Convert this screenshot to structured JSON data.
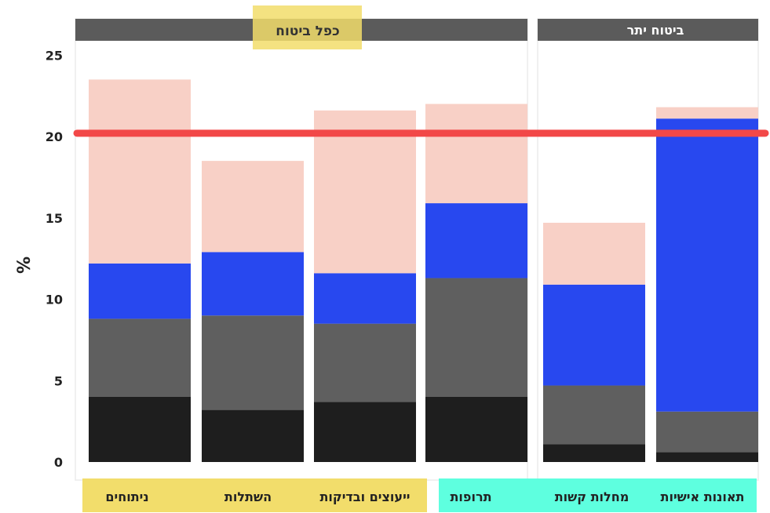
{
  "chart_data": {
    "type": "bar",
    "stacked": true,
    "ylabel": "%",
    "ylim": [
      0,
      25
    ],
    "yticks": [
      0,
      5,
      10,
      15,
      20,
      25
    ],
    "grid": false,
    "categories": [
      "ניתוחים",
      "השתלות",
      "ייעוצים ובדיקות",
      "תרופות",
      "מחלות קשות",
      "תאונות אישיות"
    ],
    "series": [
      {
        "color": "#1e1e1e",
        "values": [
          4.0,
          3.2,
          3.7,
          4.0,
          1.1,
          0.6
        ]
      },
      {
        "color": "#5f5f5f",
        "values": [
          4.8,
          5.8,
          4.8,
          7.3,
          3.6,
          2.5
        ]
      },
      {
        "color": "#2848ef",
        "values": [
          3.4,
          3.9,
          3.1,
          4.6,
          6.2,
          18.0
        ]
      },
      {
        "color": "#f8d0c6",
        "values": [
          11.3,
          5.6,
          10.0,
          6.1,
          3.8,
          0.7
        ]
      }
    ],
    "reference_line": {
      "value": 20.2,
      "color": "#f24848"
    },
    "groups": [
      {
        "label": "כפל ביטוח",
        "categories": [
          0,
          1,
          2,
          3
        ]
      },
      {
        "label": "ביטוח יתר",
        "categories": [
          4,
          5
        ]
      }
    ],
    "category_highlights": [
      {
        "categories": [
          0,
          1,
          2
        ],
        "color": "#f2dd6b"
      },
      {
        "categories": [
          3,
          4,
          5
        ],
        "color": "#5effdf"
      }
    ],
    "colors": {
      "group_header": "#5b5b5b",
      "title_highlight": "#f2dd6b"
    }
  }
}
